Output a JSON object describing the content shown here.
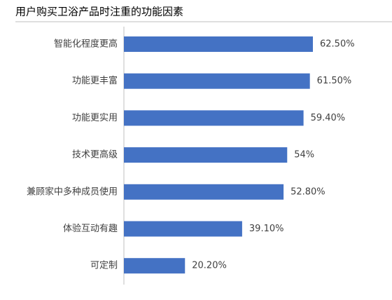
{
  "chart_data": {
    "type": "bar",
    "orientation": "horizontal",
    "title": "用户购买卫浴产品时注重的功能因素",
    "categories": [
      "智能化程度更高",
      "功能更丰富",
      "功能更实用",
      "技术更高级",
      "兼顾家中多种成员使用",
      "体验互动有趣",
      "可定制"
    ],
    "values": [
      62.5,
      61.5,
      59.4,
      54,
      52.8,
      39.1,
      20.2
    ],
    "value_labels": [
      "62.50%",
      "61.50%",
      "59.40%",
      "54%",
      "52.80%",
      "39.10%",
      "20.20%"
    ],
    "color": "#4472c4"
  }
}
